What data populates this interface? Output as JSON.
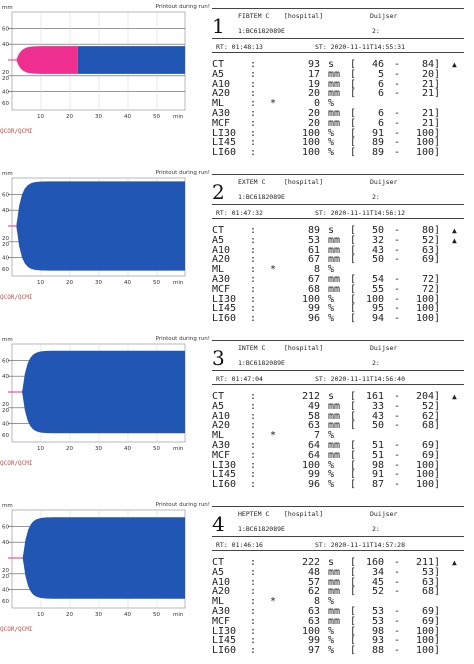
{
  "common": {
    "printout_label": "Printout during run!",
    "qc_label": "QCOR/QCMI",
    "hospital": "[hospital]",
    "operator": "Duijser",
    "sample_line": "1:BC6182089E",
    "sample_index": "2:",
    "x_ticks": [
      "10",
      "20",
      "30",
      "40",
      "50",
      "min"
    ],
    "y_ticks": [
      "mm",
      "60",
      "40",
      "20",
      "20",
      "40",
      "60"
    ],
    "colors": {
      "plot_fill": "#2156b5",
      "pink_fill": "#ef2f8f",
      "ref_line": "#5a5a5a",
      "qc_text": "#c8504a"
    }
  },
  "tests": [
    {
      "number": "1",
      "name": "FIBTEM C",
      "rt": "RT:  01:48:13",
      "st": "ST:  2020-11-11T14:55:31",
      "params": [
        {
          "name": "CT",
          "flag": "",
          "value": "93",
          "unit": "s",
          "lb": "[",
          "lo": "46",
          "hi": "84",
          "rb": "]",
          "mark": "▲"
        },
        {
          "name": "A5",
          "flag": "",
          "value": "17",
          "unit": "mm",
          "lb": "[",
          "lo": "5",
          "hi": "20",
          "rb": "]",
          "mark": ""
        },
        {
          "name": "A10",
          "flag": "",
          "value": "19",
          "unit": "mm",
          "lb": "[",
          "lo": "6",
          "hi": "21",
          "rb": "]",
          "mark": ""
        },
        {
          "name": "A20",
          "flag": "",
          "value": "20",
          "unit": "mm",
          "lb": "[",
          "lo": "6",
          "hi": "21",
          "rb": "]",
          "mark": ""
        },
        {
          "name": "ML",
          "flag": "*",
          "value": "0",
          "unit": "%",
          "lb": "",
          "lo": "",
          "hi": "",
          "rb": "",
          "mark": ""
        },
        {
          "name": "A30",
          "flag": "",
          "value": "20",
          "unit": "mm",
          "lb": "[",
          "lo": "6",
          "hi": "21",
          "rb": "]",
          "mark": ""
        },
        {
          "name": "MCF",
          "flag": "",
          "value": "20",
          "unit": "mm",
          "lb": "[",
          "lo": "6",
          "hi": "21",
          "rb": "]",
          "mark": ""
        },
        {
          "name": "LI30",
          "flag": "",
          "value": "100",
          "unit": "%",
          "lb": "[",
          "lo": "91",
          "hi": "100",
          "rb": "]",
          "mark": ""
        },
        {
          "name": "LI45",
          "flag": "",
          "value": "100",
          "unit": "%",
          "lb": "[",
          "lo": "89",
          "hi": "100",
          "rb": "]",
          "mark": ""
        },
        {
          "name": "LI60",
          "flag": "",
          "value": "100",
          "unit": "%",
          "lb": "[",
          "lo": "89",
          "hi": "100",
          "rb": "]",
          "mark": ""
        }
      ]
    },
    {
      "number": "2",
      "name": "EXTEM C",
      "rt": "RT:  01:47:32",
      "st": "ST:  2020-11-11T14:56:12",
      "params": [
        {
          "name": "CT",
          "flag": "",
          "value": "89",
          "unit": "s",
          "lb": "[",
          "lo": "50",
          "hi": "80",
          "rb": "]",
          "mark": "▲"
        },
        {
          "name": "A5",
          "flag": "",
          "value": "53",
          "unit": "mm",
          "lb": "[",
          "lo": "32",
          "hi": "52",
          "rb": "]",
          "mark": "▲"
        },
        {
          "name": "A10",
          "flag": "",
          "value": "61",
          "unit": "mm",
          "lb": "[",
          "lo": "43",
          "hi": "63",
          "rb": "]",
          "mark": ""
        },
        {
          "name": "A20",
          "flag": "",
          "value": "67",
          "unit": "mm",
          "lb": "[",
          "lo": "50",
          "hi": "69",
          "rb": "]",
          "mark": ""
        },
        {
          "name": "ML",
          "flag": "*",
          "value": "8",
          "unit": "%",
          "lb": "",
          "lo": "",
          "hi": "",
          "rb": "",
          "mark": ""
        },
        {
          "name": "A30",
          "flag": "",
          "value": "67",
          "unit": "mm",
          "lb": "[",
          "lo": "54",
          "hi": "72",
          "rb": "]",
          "mark": ""
        },
        {
          "name": "MCF",
          "flag": "",
          "value": "68",
          "unit": "mm",
          "lb": "[",
          "lo": "55",
          "hi": "72",
          "rb": "]",
          "mark": ""
        },
        {
          "name": "LI30",
          "flag": "",
          "value": "100",
          "unit": "%",
          "lb": "[",
          "lo": "100",
          "hi": "100",
          "rb": "]",
          "mark": ""
        },
        {
          "name": "LI45",
          "flag": "",
          "value": "99",
          "unit": "%",
          "lb": "[",
          "lo": "95",
          "hi": "100",
          "rb": "]",
          "mark": ""
        },
        {
          "name": "LI60",
          "flag": "",
          "value": "96",
          "unit": "%",
          "lb": "[",
          "lo": "94",
          "hi": "100",
          "rb": "]",
          "mark": ""
        }
      ]
    },
    {
      "number": "3",
      "name": "INTEM C",
      "rt": "RT:  01:47:04",
      "st": "ST:  2020-11-11T14:56:40",
      "params": [
        {
          "name": "CT",
          "flag": "",
          "value": "212",
          "unit": "s",
          "lb": "[",
          "lo": "161",
          "hi": "204",
          "rb": "]",
          "mark": "▲"
        },
        {
          "name": "A5",
          "flag": "",
          "value": "49",
          "unit": "mm",
          "lb": "[",
          "lo": "33",
          "hi": "52",
          "rb": "]",
          "mark": ""
        },
        {
          "name": "A10",
          "flag": "",
          "value": "58",
          "unit": "mm",
          "lb": "[",
          "lo": "43",
          "hi": "62",
          "rb": "]",
          "mark": ""
        },
        {
          "name": "A20",
          "flag": "",
          "value": "63",
          "unit": "mm",
          "lb": "[",
          "lo": "50",
          "hi": "68",
          "rb": "]",
          "mark": ""
        },
        {
          "name": "ML",
          "flag": "*",
          "value": "7",
          "unit": "%",
          "lb": "",
          "lo": "",
          "hi": "",
          "rb": "",
          "mark": ""
        },
        {
          "name": "A30",
          "flag": "",
          "value": "64",
          "unit": "mm",
          "lb": "[",
          "lo": "51",
          "hi": "69",
          "rb": "]",
          "mark": ""
        },
        {
          "name": "MCF",
          "flag": "",
          "value": "64",
          "unit": "mm",
          "lb": "[",
          "lo": "51",
          "hi": "69",
          "rb": "]",
          "mark": ""
        },
        {
          "name": "LI30",
          "flag": "",
          "value": "100",
          "unit": "%",
          "lb": "[",
          "lo": "98",
          "hi": "100",
          "rb": "]",
          "mark": ""
        },
        {
          "name": "LI45",
          "flag": "",
          "value": "99",
          "unit": "%",
          "lb": "[",
          "lo": "91",
          "hi": "100",
          "rb": "]",
          "mark": ""
        },
        {
          "name": "LI60",
          "flag": "",
          "value": "96",
          "unit": "%",
          "lb": "[",
          "lo": "87",
          "hi": "100",
          "rb": "]",
          "mark": ""
        }
      ]
    },
    {
      "number": "4",
      "name": "HEPTEM C",
      "rt": "RT:  01:46:16",
      "st": "ST:  2020-11-11T14:57:28",
      "params": [
        {
          "name": "CT",
          "flag": "",
          "value": "222",
          "unit": "s",
          "lb": "[",
          "lo": "160",
          "hi": "211",
          "rb": "]",
          "mark": "▲"
        },
        {
          "name": "A5",
          "flag": "",
          "value": "48",
          "unit": "mm",
          "lb": "[",
          "lo": "34",
          "hi": "53",
          "rb": "]",
          "mark": ""
        },
        {
          "name": "A10",
          "flag": "",
          "value": "57",
          "unit": "mm",
          "lb": "[",
          "lo": "45",
          "hi": "63",
          "rb": "]",
          "mark": ""
        },
        {
          "name": "A20",
          "flag": "",
          "value": "62",
          "unit": "mm",
          "lb": "[",
          "lo": "52",
          "hi": "68",
          "rb": "]",
          "mark": ""
        },
        {
          "name": "ML",
          "flag": "*",
          "value": "8",
          "unit": "%",
          "lb": "",
          "lo": "",
          "hi": "",
          "rb": "",
          "mark": ""
        },
        {
          "name": "A30",
          "flag": "",
          "value": "63",
          "unit": "mm",
          "lb": "[",
          "lo": "53",
          "hi": "69",
          "rb": "]",
          "mark": ""
        },
        {
          "name": "MCF",
          "flag": "",
          "value": "63",
          "unit": "mm",
          "lb": "[",
          "lo": "53",
          "hi": "69",
          "rb": "]",
          "mark": ""
        },
        {
          "name": "LI30",
          "flag": "",
          "value": "100",
          "unit": "%",
          "lb": "[",
          "lo": "98",
          "hi": "100",
          "rb": "]",
          "mark": ""
        },
        {
          "name": "LI45",
          "flag": "",
          "value": "99",
          "unit": "%",
          "lb": "[",
          "lo": "93",
          "hi": "100",
          "rb": "]",
          "mark": ""
        },
        {
          "name": "LI60",
          "flag": "",
          "value": "97",
          "unit": "%",
          "lb": "[",
          "lo": "88",
          "hi": "100",
          "rb": "]",
          "mark": ""
        }
      ]
    }
  ]
}
